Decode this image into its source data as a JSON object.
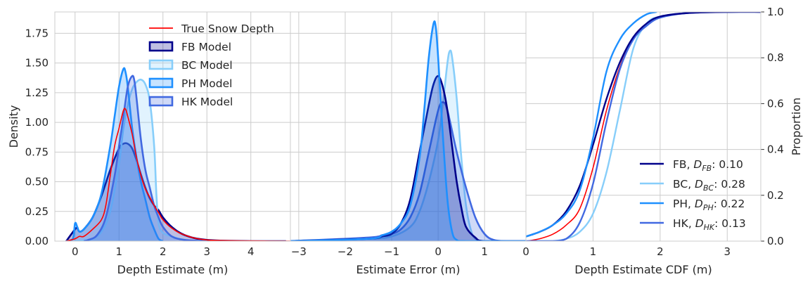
{
  "chart_data": [
    {
      "type": "area",
      "title": "",
      "xlabel": "Depth Estimate (m)",
      "ylabel": "Density",
      "xlim": [
        -0.46,
        4.9
      ],
      "ylim": [
        0,
        1.93
      ],
      "xticks": [
        "0",
        "1",
        "2",
        "3",
        "4"
      ],
      "xtick_values": [
        0,
        1,
        2,
        3,
        4
      ],
      "yticks": [
        "0.00",
        "0.25",
        "0.50",
        "0.75",
        "1.00",
        "1.25",
        "1.50",
        "1.75"
      ],
      "ytick_values": [
        0,
        0.25,
        0.5,
        0.75,
        1.0,
        1.25,
        1.5,
        1.75
      ],
      "grid": true,
      "legend_position": "top-right",
      "legend": [
        {
          "label": "True Snow Depth",
          "kind": "line",
          "color": "#ff0000"
        },
        {
          "label": "FB Model",
          "kind": "patch",
          "color": "#00008b"
        },
        {
          "label": "BC Model",
          "kind": "patch",
          "color": "#87cefa"
        },
        {
          "label": "PH Model",
          "kind": "patch",
          "color": "#1e90ff"
        },
        {
          "label": "HK Model",
          "kind": "patch",
          "color": "#4169e1"
        }
      ],
      "series": [
        {
          "name": "FB Model",
          "color": "#00008b",
          "fill": true,
          "x": [
            -0.2,
            0,
            0.05,
            0.1,
            0.2,
            0.4,
            0.6,
            0.8,
            1.0,
            1.1,
            1.2,
            1.3,
            1.4,
            1.5,
            1.6,
            1.7,
            1.8,
            1.9,
            2.0,
            2.2,
            2.5,
            3.0,
            4.0,
            4.8
          ],
          "y": [
            0,
            0.1,
            0.11,
            0.08,
            0.1,
            0.2,
            0.38,
            0.6,
            0.78,
            0.82,
            0.82,
            0.78,
            0.68,
            0.56,
            0.45,
            0.36,
            0.3,
            0.26,
            0.2,
            0.12,
            0.05,
            0.01,
            0,
            0
          ]
        },
        {
          "name": "BC Model",
          "color": "#87cefa",
          "fill": true,
          "x": [
            0,
            0.2,
            0.4,
            0.6,
            0.8,
            1.0,
            1.1,
            1.2,
            1.3,
            1.4,
            1.5,
            1.6,
            1.7,
            1.8,
            1.85,
            1.9,
            2.0,
            2.2,
            2.5,
            3.0
          ],
          "y": [
            0,
            0.005,
            0.02,
            0.08,
            0.25,
            0.65,
            0.95,
            1.15,
            1.28,
            1.34,
            1.36,
            1.32,
            1.18,
            0.8,
            0.4,
            0.15,
            0.07,
            0.04,
            0.01,
            0
          ]
        },
        {
          "name": "PH Model",
          "color": "#1e90ff",
          "fill": true,
          "x": [
            -0.2,
            -0.05,
            0,
            0.05,
            0.1,
            0.2,
            0.4,
            0.6,
            0.8,
            0.9,
            1.0,
            1.1,
            1.15,
            1.2,
            1.3,
            1.4,
            1.5,
            1.6,
            1.7,
            1.8,
            1.9,
            2.0
          ],
          "y": [
            0,
            0.02,
            0.15,
            0.12,
            0.08,
            0.1,
            0.2,
            0.4,
            0.8,
            1.05,
            1.3,
            1.45,
            1.42,
            1.3,
            0.95,
            0.7,
            0.5,
            0.35,
            0.2,
            0.1,
            0.02,
            0
          ]
        },
        {
          "name": "HK Model",
          "color": "#4169e1",
          "fill": true,
          "x": [
            0.2,
            0.3,
            0.5,
            0.7,
            0.9,
            1.0,
            1.1,
            1.2,
            1.3,
            1.35,
            1.4,
            1.5,
            1.6,
            1.7,
            1.8,
            1.9,
            2.0,
            2.2,
            2.5,
            3.0
          ],
          "y": [
            0,
            0.01,
            0.05,
            0.2,
            0.55,
            0.8,
            1.05,
            1.3,
            1.39,
            1.35,
            1.2,
            0.85,
            0.6,
            0.45,
            0.3,
            0.2,
            0.12,
            0.04,
            0.01,
            0
          ]
        },
        {
          "name": "True Snow Depth",
          "color": "#ff0000",
          "fill": false,
          "x": [
            -0.2,
            0,
            0.1,
            0.2,
            0.4,
            0.6,
            0.7,
            0.8,
            0.9,
            1.0,
            1.1,
            1.15,
            1.2,
            1.3,
            1.4,
            1.5,
            1.6,
            1.7,
            1.8,
            1.9,
            2.0,
            2.2,
            2.5,
            3.0,
            4.0,
            4.9
          ],
          "y": [
            0,
            0.02,
            0.04,
            0.04,
            0.1,
            0.18,
            0.3,
            0.55,
            0.8,
            0.95,
            1.1,
            1.11,
            1.05,
            0.9,
            0.7,
            0.55,
            0.44,
            0.37,
            0.3,
            0.24,
            0.18,
            0.11,
            0.05,
            0.01,
            0.002,
            0
          ]
        }
      ]
    },
    {
      "type": "area",
      "title": "",
      "xlabel": "Estimate Error (m)",
      "ylabel": "",
      "xlim": [
        -3.18,
        1.89
      ],
      "ylim": [
        0,
        1.93
      ],
      "xticks": [
        "−3",
        "−2",
        "−1",
        "0",
        "1"
      ],
      "xtick_values": [
        -3,
        -2,
        -1,
        0,
        1
      ],
      "grid": true,
      "series": [
        {
          "name": "BC Model",
          "color": "#87cefa",
          "fill": true,
          "x": [
            -3.2,
            -1.5,
            -1,
            -0.6,
            -0.4,
            -0.2,
            0,
            0.1,
            0.2,
            0.25,
            0.3,
            0.4,
            0.5,
            0.6,
            0.7,
            0.8,
            1.0,
            1.9
          ],
          "y": [
            0,
            0.02,
            0.04,
            0.12,
            0.25,
            0.5,
            0.85,
            1.15,
            1.5,
            1.6,
            1.55,
            1.2,
            0.7,
            0.3,
            0.1,
            0.02,
            0,
            0
          ]
        },
        {
          "name": "HK Model",
          "color": "#4169e1",
          "fill": true,
          "x": [
            -3.2,
            -1.5,
            -1.2,
            -1,
            -0.8,
            -0.6,
            -0.4,
            -0.2,
            0,
            0.1,
            0.2,
            0.4,
            0.6,
            0.8,
            1.0,
            1.2,
            1.5,
            1.9
          ],
          "y": [
            0,
            0.03,
            0.05,
            0.06,
            0.1,
            0.2,
            0.4,
            0.75,
            1.1,
            1.17,
            1.1,
            0.75,
            0.45,
            0.2,
            0.06,
            0.01,
            0,
            0
          ]
        },
        {
          "name": "FB Model",
          "color": "#00008b",
          "fill": true,
          "x": [
            -3.2,
            -1.5,
            -1.2,
            -1.0,
            -0.8,
            -0.6,
            -0.4,
            -0.2,
            -0.1,
            0,
            0.1,
            0.2,
            0.3,
            0.4,
            0.5,
            0.6,
            0.8,
            1.0,
            1.9
          ],
          "y": [
            0,
            0.02,
            0.04,
            0.06,
            0.15,
            0.35,
            0.75,
            1.15,
            1.32,
            1.39,
            1.3,
            1.1,
            0.8,
            0.5,
            0.28,
            0.12,
            0.03,
            0,
            0
          ]
        },
        {
          "name": "PH Model",
          "color": "#1e90ff",
          "fill": true,
          "x": [
            -3.2,
            -1.5,
            -1.2,
            -1,
            -0.8,
            -0.6,
            -0.4,
            -0.3,
            -0.2,
            -0.1,
            -0.05,
            0,
            0.1,
            0.2,
            0.3,
            0.4,
            0.6,
            1.9
          ],
          "y": [
            0,
            0.02,
            0.05,
            0.08,
            0.15,
            0.3,
            0.7,
            1.1,
            1.55,
            1.83,
            1.8,
            1.55,
            0.9,
            0.35,
            0.08,
            0.01,
            0,
            0
          ]
        }
      ]
    },
    {
      "type": "line",
      "title": "",
      "xlabel": "Depth Estimate CDF (m)",
      "ylabel": "Proportion",
      "xlim": [
        0,
        3.5
      ],
      "ylim": [
        0,
        1.0
      ],
      "xticks": [
        "0",
        "1",
        "2",
        "3"
      ],
      "xtick_values": [
        0,
        1,
        2,
        3
      ],
      "yticks": [
        "0.0",
        "0.2",
        "0.4",
        "0.6",
        "0.8",
        "1.0"
      ],
      "ytick_values": [
        0,
        0.2,
        0.4,
        0.6,
        0.8,
        1.0
      ],
      "grid": true,
      "legend_position": "lower-right",
      "legend": [
        {
          "model": "FB",
          "sub": "FB",
          "value": "0.10",
          "color": "#00008b"
        },
        {
          "model": "BC",
          "sub": "BC",
          "value": "0.28",
          "color": "#87cefa"
        },
        {
          "model": "PH",
          "sub": "PH",
          "value": "0.22",
          "color": "#1e90ff"
        },
        {
          "model": "HK",
          "sub": "HK",
          "value": "0.13",
          "color": "#4169e1"
        }
      ],
      "series": [
        {
          "name": "True Snow Depth",
          "color": "#ff0000",
          "width": 1.6,
          "x": [
            0,
            0.2,
            0.4,
            0.6,
            0.8,
            1.0,
            1.2,
            1.4,
            1.6,
            1.8,
            2.0,
            2.4,
            3.0,
            3.5
          ],
          "y": [
            0,
            0.01,
            0.03,
            0.07,
            0.14,
            0.32,
            0.57,
            0.76,
            0.89,
            0.95,
            0.98,
            0.995,
            1,
            1
          ]
        },
        {
          "name": "BC Model",
          "color": "#87cefa",
          "width": 2.4,
          "x": [
            0,
            0.2,
            0.4,
            0.6,
            0.8,
            1.0,
            1.2,
            1.4,
            1.6,
            1.8,
            2.0,
            2.4,
            3.0,
            3.5
          ],
          "y": [
            0,
            0,
            0,
            0.01,
            0.04,
            0.12,
            0.3,
            0.57,
            0.84,
            0.95,
            0.98,
            0.995,
            1,
            1
          ]
        },
        {
          "name": "HK Model",
          "color": "#4169e1",
          "width": 2.4,
          "x": [
            0,
            0.2,
            0.4,
            0.6,
            0.8,
            1.0,
            1.2,
            1.4,
            1.6,
            1.8,
            2.0,
            2.4,
            3.0,
            3.5
          ],
          "y": [
            0,
            0,
            0,
            0.01,
            0.08,
            0.25,
            0.52,
            0.75,
            0.88,
            0.94,
            0.975,
            0.995,
            1,
            1
          ]
        },
        {
          "name": "FB Model",
          "color": "#00008b",
          "width": 2.4,
          "x": [
            0,
            0.2,
            0.4,
            0.6,
            0.8,
            1.0,
            1.2,
            1.4,
            1.6,
            1.8,
            2.0,
            2.4,
            3.0,
            3.5
          ],
          "y": [
            0.02,
            0.04,
            0.07,
            0.13,
            0.24,
            0.42,
            0.62,
            0.78,
            0.89,
            0.95,
            0.98,
            0.995,
            1,
            1
          ]
        },
        {
          "name": "PH Model",
          "color": "#1e90ff",
          "width": 2.4,
          "x": [
            0,
            0.2,
            0.4,
            0.6,
            0.8,
            1.0,
            1.2,
            1.4,
            1.6,
            1.8,
            1.95
          ],
          "y": [
            0.02,
            0.04,
            0.07,
            0.12,
            0.22,
            0.45,
            0.74,
            0.88,
            0.95,
            0.99,
            1
          ]
        }
      ]
    }
  ]
}
